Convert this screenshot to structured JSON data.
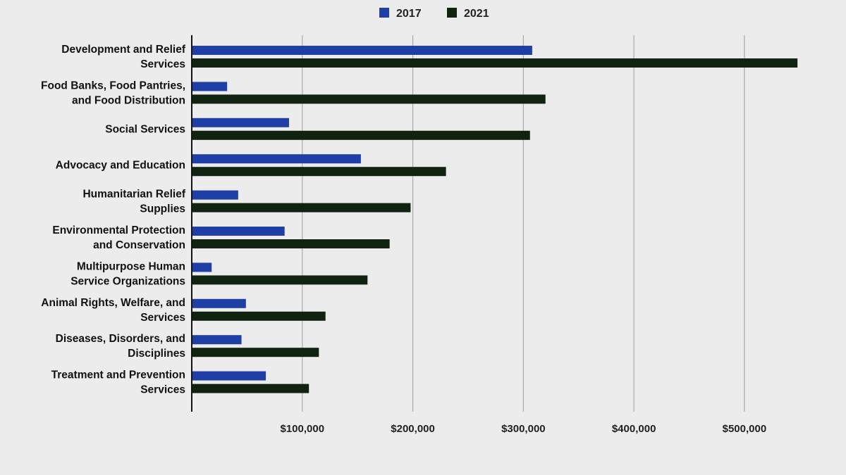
{
  "chart_data": {
    "type": "bar",
    "orientation": "horizontal",
    "categories": [
      [
        "Development and Relief",
        "Services"
      ],
      [
        "Food Banks, Food Pantries,",
        "and Food Distribution"
      ],
      [
        "Social Services"
      ],
      [
        "Advocacy and Education"
      ],
      [
        "Humanitarian Relief",
        "Supplies"
      ],
      [
        "Environmental Protection",
        "and Conservation"
      ],
      [
        "Multipurpose Human",
        "Service Organizations"
      ],
      [
        "Animal Rights, Welfare, and",
        "Services"
      ],
      [
        "Diseases, Disorders, and",
        "Disciplines"
      ],
      [
        "Treatment and Prevention",
        "Services"
      ]
    ],
    "series": [
      {
        "name": "2017",
        "color": "#1f3fa6",
        "values": [
          308000,
          32000,
          88000,
          153000,
          42000,
          84000,
          18000,
          49000,
          45000,
          67000
        ]
      },
      {
        "name": "2021",
        "color": "#0f2310",
        "values": [
          548000,
          320000,
          306000,
          230000,
          198000,
          179000,
          159000,
          121000,
          115000,
          106000
        ]
      }
    ],
    "xlim": [
      0,
      560000
    ],
    "xticks": [
      100000,
      200000,
      300000,
      400000,
      500000
    ],
    "xtick_labels": [
      "$100,000",
      "$200,000",
      "$300,000",
      "$400,000",
      "$500,000"
    ],
    "grid": true,
    "legend_position": "top"
  }
}
